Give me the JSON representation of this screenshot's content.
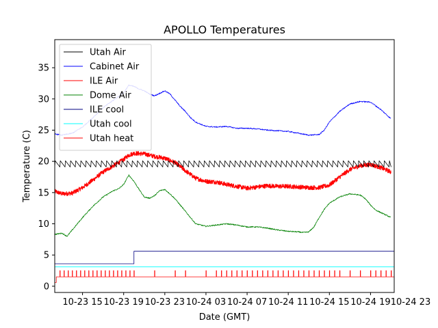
{
  "chart_data": {
    "type": "line",
    "title": "APOLLO Temperatures",
    "xlabel": "Date (GMT)",
    "ylabel": "Temperature (C)",
    "xlim": [
      10.3,
      43.3
    ],
    "ylim": [
      -1,
      39.5
    ],
    "x_ticks": [
      {
        "value": 13,
        "label": "10-23 15"
      },
      {
        "value": 17,
        "label": "10-23 19"
      },
      {
        "value": 21,
        "label": "10-23 23"
      },
      {
        "value": 25,
        "label": "10-24 03"
      },
      {
        "value": 29,
        "label": "10-24 07"
      },
      {
        "value": 33,
        "label": "10-24 11"
      },
      {
        "value": 37,
        "label": "10-24 15"
      },
      {
        "value": 41,
        "label": "10-24 19"
      },
      {
        "value": 45,
        "label": "10-24 23"
      }
    ],
    "y_ticks": [
      {
        "value": 0,
        "label": "0"
      },
      {
        "value": 5,
        "label": "5"
      },
      {
        "value": 10,
        "label": "10"
      },
      {
        "value": 15,
        "label": "15"
      },
      {
        "value": 20,
        "label": "20"
      },
      {
        "value": 25,
        "label": "25"
      },
      {
        "value": 30,
        "label": "30"
      },
      {
        "value": 35,
        "label": "35"
      }
    ],
    "legend_position": "top-left",
    "series": [
      {
        "name": "Utah Air",
        "color": "#000000",
        "style": "sawtooth",
        "x": [
          10.3,
          43.0
        ],
        "y": [
          19.6,
          19.6
        ],
        "amplitude": 1.0,
        "period": 0.5
      },
      {
        "name": "Cabinet Air",
        "color": "#0000ff",
        "style": "line",
        "x": [
          10.3,
          11.0,
          12.0,
          13.0,
          14.0,
          15.0,
          16.0,
          17.0,
          17.5,
          18.0,
          18.5,
          19.0,
          19.5,
          20.0,
          21.0,
          21.5,
          22.0,
          22.5,
          23.0,
          23.5,
          24.0,
          25.0,
          26.0,
          27.0,
          28.0,
          29.0,
          30.0,
          31.0,
          32.0,
          33.0,
          34.0,
          35.0,
          36.0,
          36.5,
          37.0,
          38.0,
          39.0,
          40.0,
          41.0,
          42.0,
          43.0
        ],
        "y": [
          24.4,
          24.2,
          24.5,
          25.5,
          27.0,
          28.6,
          29.8,
          31.0,
          32.2,
          32.0,
          31.6,
          31.3,
          30.8,
          30.5,
          31.3,
          30.8,
          29.8,
          28.8,
          28.0,
          27.0,
          26.3,
          25.6,
          25.5,
          25.6,
          25.3,
          25.3,
          25.2,
          25.0,
          24.9,
          24.8,
          24.5,
          24.2,
          24.3,
          25.0,
          26.3,
          28.0,
          29.2,
          29.6,
          29.5,
          28.3,
          26.8
        ]
      },
      {
        "name": "ILE Air",
        "color": "#ff0000",
        "style": "noisy",
        "x": [
          10.3,
          11.0,
          12.0,
          13.0,
          14.0,
          15.0,
          16.0,
          17.0,
          17.5,
          18.0,
          19.0,
          20.0,
          21.0,
          22.0,
          23.0,
          24.0,
          25.0,
          26.0,
          27.0,
          28.0,
          29.0,
          30.0,
          31.0,
          32.0,
          33.0,
          34.0,
          35.0,
          36.0,
          37.0,
          38.0,
          39.0,
          40.0,
          41.0,
          42.0,
          43.0
        ],
        "y": [
          15.2,
          14.8,
          14.9,
          15.8,
          17.0,
          18.3,
          19.3,
          20.3,
          21.0,
          21.3,
          21.2,
          20.8,
          20.5,
          19.8,
          18.5,
          17.3,
          16.8,
          16.7,
          16.3,
          16.0,
          15.7,
          15.9,
          16.1,
          16.0,
          16.0,
          15.9,
          15.8,
          15.8,
          16.2,
          17.5,
          18.7,
          19.3,
          19.5,
          19.0,
          18.3
        ]
      },
      {
        "name": "Dome Air",
        "color": "#008000",
        "style": "line",
        "x": [
          10.3,
          11.0,
          11.5,
          12.0,
          13.0,
          14.0,
          15.0,
          16.0,
          16.5,
          17.0,
          17.5,
          18.0,
          18.5,
          19.0,
          19.5,
          20.0,
          20.5,
          21.0,
          21.5,
          22.0,
          22.5,
          23.0,
          23.5,
          24.0,
          25.0,
          26.0,
          27.0,
          28.0,
          29.0,
          30.0,
          31.0,
          32.0,
          33.0,
          34.0,
          34.5,
          35.0,
          35.5,
          36.0,
          36.5,
          37.0,
          38.0,
          39.0,
          40.0,
          40.5,
          41.0,
          41.5,
          42.0,
          43.0
        ],
        "y": [
          8.3,
          8.5,
          8.0,
          9.0,
          11.0,
          12.8,
          14.3,
          15.3,
          15.6,
          16.3,
          17.8,
          16.8,
          15.5,
          14.3,
          14.1,
          14.5,
          15.3,
          15.5,
          14.8,
          14.0,
          13.0,
          12.0,
          11.0,
          10.0,
          9.6,
          9.8,
          10.0,
          9.8,
          9.5,
          9.5,
          9.3,
          9.0,
          8.8,
          8.7,
          8.6,
          8.7,
          9.5,
          11.0,
          12.3,
          13.3,
          14.3,
          14.8,
          14.6,
          14.0,
          13.0,
          12.2,
          11.8,
          11.0
        ]
      },
      {
        "name": "ILE cool",
        "color": "#000080",
        "style": "step",
        "x": [
          10.3,
          18.0,
          18.0,
          43.3
        ],
        "y": [
          3.6,
          3.6,
          5.6,
          5.6
        ]
      },
      {
        "name": "Utah cool",
        "color": "#00ffff",
        "style": "line",
        "x": [
          10.3,
          43.3
        ],
        "y": [
          3.1,
          3.1
        ]
      },
      {
        "name": "Utah heat",
        "color": "#ff0000",
        "style": "pulse",
        "x": [
          10.3,
          43.3
        ],
        "y": [
          1.5,
          1.5
        ],
        "initial_step": [
          0.6,
          1.5
        ],
        "pulse_height": 2.5,
        "pulse_times": [
          10.8,
          11.2,
          11.6,
          12.0,
          12.4,
          12.8,
          13.2,
          13.6,
          14.0,
          14.4,
          14.8,
          15.2,
          15.6,
          16.0,
          16.4,
          16.8,
          17.2,
          17.6,
          18.0,
          20.0,
          22.0,
          23.0,
          25.0,
          26.0,
          26.5,
          27.0,
          27.5,
          28.0,
          28.5,
          29.0,
          29.5,
          30.0,
          30.5,
          31.0,
          31.5,
          32.0,
          32.5,
          33.0,
          33.5,
          34.0,
          34.5,
          35.0,
          35.5,
          36.0,
          36.5,
          37.0,
          37.5,
          38.0,
          39.0,
          40.0,
          41.0,
          41.5,
          42.0,
          42.5,
          43.0
        ]
      }
    ]
  }
}
